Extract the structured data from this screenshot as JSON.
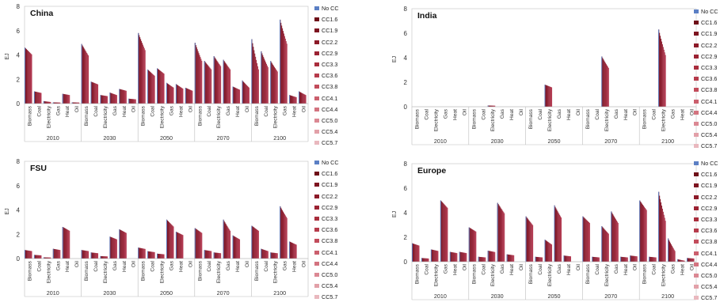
{
  "legend": [
    "No CC",
    "CC1.6",
    "CC1.9",
    "CC2.2",
    "CC2.9",
    "CC3.3",
    "CC3.6",
    "CC3.8",
    "CC4.1",
    "CC4.4",
    "CC5.0",
    "CC5.4",
    "CC5.7"
  ],
  "legend_colors": [
    "#5b7fc4",
    "#6e0f18",
    "#7d1420",
    "#8c1a28",
    "#9b2232",
    "#a92d3c",
    "#b63b4b",
    "#c24c5b",
    "#cb5f6d",
    "#d3737f",
    "#db8893",
    "#e2a0a8",
    "#e9b8be"
  ],
  "bar_color": "#a52a3a",
  "chart_data": [
    {
      "type": "bar",
      "title": "China",
      "ylabel": "EJ",
      "ylim": [
        0,
        8
      ],
      "yticks": [
        0,
        2,
        4,
        6,
        8
      ],
      "years": [
        "2010",
        "2030",
        "2050",
        "2070",
        "2100"
      ],
      "carriers": [
        "Biomass",
        "Coal",
        "Electricity",
        "Gas",
        "Heat",
        "Oil"
      ],
      "values": {
        "2010": [
          4.6,
          1.0,
          0.15,
          0.1,
          0.8,
          0.1
        ],
        "2030": [
          4.5,
          1.8,
          0.7,
          0.8,
          1.2,
          0.4
        ],
        "2050": [
          5.0,
          2.6,
          2.8,
          1.5,
          1.4,
          1.2
        ],
        "2070": [
          4.0,
          3.2,
          3.5,
          3.2,
          1.3,
          1.5
        ],
        "2100": [
          3.2,
          3.4,
          3.0,
          5.6,
          0.6,
          0.8
        ]
      },
      "nocc_peaks": {
        "2010": [
          4.6,
          1.0,
          0.2,
          0.1,
          0.8,
          0.1
        ],
        "2030": [
          4.9,
          1.8,
          0.7,
          0.9,
          1.2,
          0.4
        ],
        "2050": [
          5.8,
          2.8,
          2.9,
          1.7,
          1.6,
          1.3
        ],
        "2070": [
          5.0,
          3.5,
          3.9,
          3.6,
          1.4,
          1.9
        ],
        "2100": [
          5.3,
          4.3,
          3.5,
          6.9,
          0.7,
          1.0
        ]
      }
    },
    {
      "type": "bar",
      "title": "India",
      "ylabel": "EJ",
      "ylim": [
        0,
        8
      ],
      "yticks": [
        0,
        2,
        4,
        6,
        8
      ],
      "years": [
        "2010",
        "2030",
        "2050",
        "2070",
        "2100"
      ],
      "carriers": [
        "Biomass",
        "Coal",
        "Electricity",
        "Gas",
        "Heat",
        "Oil"
      ],
      "values": {
        "2010": [
          0,
          0,
          0,
          0,
          0,
          0
        ],
        "2030": [
          0,
          0,
          0.1,
          0,
          0,
          0
        ],
        "2050": [
          0,
          0,
          1.8,
          0,
          0,
          0
        ],
        "2070": [
          0,
          0,
          3.6,
          0,
          0,
          0
        ],
        "2100": [
          0,
          0,
          4.8,
          0,
          0,
          0
        ]
      },
      "nocc_peaks": {
        "2010": [
          0,
          0,
          0,
          0,
          0,
          0
        ],
        "2030": [
          0,
          0,
          0.1,
          0,
          0,
          0
        ],
        "2050": [
          0,
          0,
          1.8,
          0,
          0,
          0
        ],
        "2070": [
          0,
          0,
          4.1,
          0,
          0,
          0
        ],
        "2100": [
          0,
          0,
          6.3,
          0,
          0,
          0
        ]
      }
    },
    {
      "type": "bar",
      "title": "FSU",
      "ylabel": "EJ",
      "ylim": [
        0,
        8
      ],
      "yticks": [
        0,
        2,
        4,
        6,
        8
      ],
      "years": [
        "2010",
        "2030",
        "2050",
        "2070",
        "2100"
      ],
      "carriers": [
        "Biomass",
        "Coal",
        "Electricity",
        "Gas",
        "Heat",
        "Oil"
      ],
      "values": {
        "2010": [
          0.7,
          0.3,
          0.1,
          0.8,
          2.6,
          0
        ],
        "2030": [
          0.7,
          0.5,
          0.2,
          1.8,
          2.4,
          0
        ],
        "2050": [
          0.9,
          0.6,
          0.4,
          3.0,
          2.2,
          0
        ],
        "2070": [
          2.4,
          0.7,
          0.5,
          2.6,
          1.8,
          0
        ],
        "2100": [
          2.6,
          0.7,
          0.5,
          3.8,
          1.3,
          0
        ]
      },
      "nocc_peaks": {
        "2010": [
          0.7,
          0.3,
          0.1,
          0.8,
          2.6,
          0
        ],
        "2030": [
          0.7,
          0.5,
          0.2,
          1.8,
          2.4,
          0
        ],
        "2050": [
          0.9,
          0.6,
          0.4,
          3.2,
          2.2,
          0
        ],
        "2070": [
          2.5,
          0.7,
          0.5,
          3.2,
          1.9,
          0
        ],
        "2100": [
          2.7,
          0.8,
          0.5,
          4.3,
          1.4,
          0
        ]
      }
    },
    {
      "type": "bar",
      "title": "Europe",
      "ylabel": "EJ",
      "ylim": [
        0,
        8
      ],
      "yticks": [
        0,
        2,
        4,
        6,
        8
      ],
      "years": [
        "2010",
        "2030",
        "2050",
        "2070",
        "2100"
      ],
      "carriers": [
        "Biomass",
        "Coal",
        "Electricity",
        "Gas",
        "Heat",
        "Oil"
      ],
      "values": {
        "2010": [
          1.5,
          0.3,
          1.0,
          5.0,
          0.8,
          0.8
        ],
        "2030": [
          2.8,
          0.4,
          0.9,
          4.5,
          0.6,
          0
        ],
        "2050": [
          3.4,
          0.4,
          1.6,
          4.1,
          0.5,
          0
        ],
        "2070": [
          3.6,
          0.4,
          2.6,
          3.6,
          0.4,
          0.5
        ],
        "2100": [
          4.8,
          0.4,
          3.8,
          1.0,
          0.1,
          0.3
        ]
      },
      "nocc_peaks": {
        "2010": [
          1.5,
          0.3,
          1.0,
          5.0,
          0.8,
          0.8
        ],
        "2030": [
          2.8,
          0.4,
          0.9,
          4.8,
          0.6,
          0
        ],
        "2050": [
          3.7,
          0.4,
          1.8,
          4.6,
          0.5,
          0
        ],
        "2070": [
          3.7,
          0.4,
          2.9,
          4.1,
          0.4,
          0.5
        ],
        "2100": [
          5.0,
          0.4,
          5.7,
          1.9,
          0.2,
          0.3
        ]
      }
    }
  ]
}
